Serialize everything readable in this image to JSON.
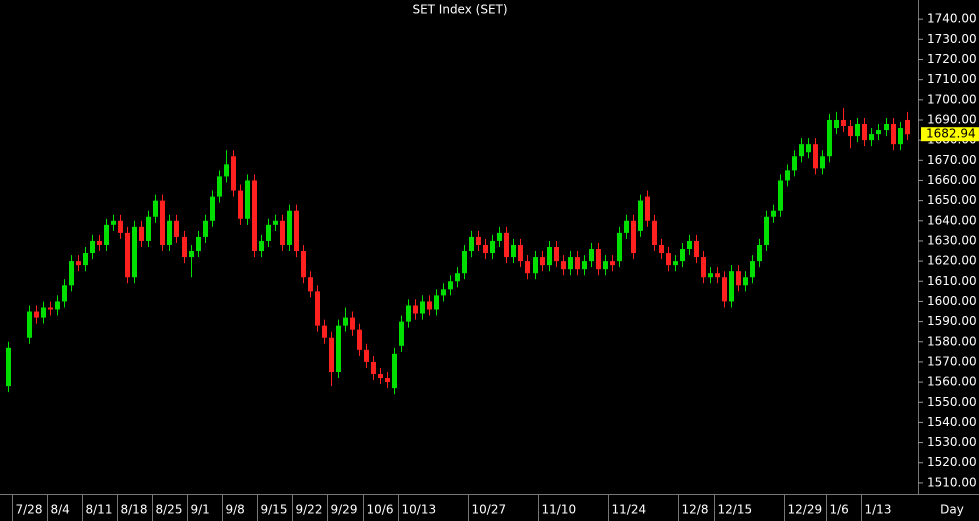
{
  "chart_data": {
    "type": "candlestick",
    "title": "SET Index (SET)",
    "x_label": "Day",
    "up_color": "#00e000",
    "down_color": "#ff2020",
    "last_color": "#ffff00",
    "ylim": [
      1504.5,
      1749.5
    ],
    "yticks": [
      {
        "value": 1510,
        "label": "1510.00"
      },
      {
        "value": 1520,
        "label": "1520.00"
      },
      {
        "value": 1530,
        "label": "1530.00"
      },
      {
        "value": 1540,
        "label": "1540.00"
      },
      {
        "value": 1550,
        "label": "1550.00"
      },
      {
        "value": 1560,
        "label": "1560.00"
      },
      {
        "value": 1570,
        "label": "1570.00"
      },
      {
        "value": 1580,
        "label": "1580.00"
      },
      {
        "value": 1590,
        "label": "1590.00"
      },
      {
        "value": 1600,
        "label": "1600.00"
      },
      {
        "value": 1610,
        "label": "1610.00"
      },
      {
        "value": 1620,
        "label": "1620.00"
      },
      {
        "value": 1630,
        "label": "1630.00"
      },
      {
        "value": 1640,
        "label": "1640.00"
      },
      {
        "value": 1650,
        "label": "1650.00"
      },
      {
        "value": 1660,
        "label": "1660.00"
      },
      {
        "value": 1670,
        "label": "1670.00"
      },
      {
        "value": 1680,
        "label": "1680.00"
      },
      {
        "value": 1690,
        "label": "1690.00"
      },
      {
        "value": 1700,
        "label": "1700.00"
      },
      {
        "value": 1710,
        "label": "1710.00"
      },
      {
        "value": 1720,
        "label": "1720.00"
      },
      {
        "value": 1730,
        "label": "1730.00"
      },
      {
        "value": 1740,
        "label": "1740.00"
      }
    ],
    "categories": [
      null,
      "7/28",
      null,
      null,
      null,
      null,
      "8/4",
      null,
      null,
      null,
      null,
      "8/11",
      null,
      null,
      null,
      null,
      "8/18",
      null,
      null,
      null,
      null,
      "8/25",
      null,
      null,
      null,
      null,
      "9/1",
      null,
      null,
      null,
      null,
      "9/8",
      null,
      null,
      null,
      null,
      "9/15",
      null,
      null,
      null,
      null,
      "9/22",
      null,
      null,
      null,
      null,
      "9/29",
      null,
      null,
      null,
      null,
      "10/6",
      null,
      null,
      null,
      null,
      "10/13",
      null,
      null,
      null,
      null,
      null,
      null,
      null,
      null,
      null,
      "10/27",
      null,
      null,
      null,
      null,
      null,
      null,
      null,
      null,
      null,
      "11/10",
      null,
      null,
      null,
      null,
      null,
      null,
      null,
      null,
      null,
      "11/24",
      null,
      null,
      null,
      null,
      null,
      null,
      null,
      null,
      null,
      "12/8",
      null,
      null,
      null,
      null,
      "12/15",
      null,
      null,
      null,
      null,
      null,
      null,
      null,
      null,
      null,
      "12/29",
      null,
      null,
      null,
      null,
      null,
      "1/6",
      null,
      null,
      null,
      null,
      "1/13",
      null,
      null,
      null,
      null,
      null,
      null
    ],
    "open": [
      1558,
      null,
      null,
      1582,
      1595,
      1592,
      1597,
      1596,
      1600,
      1608,
      1620,
      1618,
      1624,
      1630,
      1628,
      1638,
      1640,
      1634,
      1612,
      1637,
      1630,
      1642,
      1650,
      1628,
      1640,
      1632,
      1622,
      1625,
      1632,
      1640,
      1652,
      1662,
      1672,
      1655,
      1641,
      1660,
      1625,
      1630,
      1638,
      1640,
      1628,
      1645,
      1625,
      1612,
      1605,
      1588,
      1582,
      1565,
      1588,
      1592,
      1586,
      1576,
      1570,
      1564,
      1562,
      1557,
      1578,
      1590,
      1598,
      1594,
      1600,
      1596,
      1603,
      1606,
      1610,
      1614,
      1625,
      1632,
      1628,
      1624,
      1630,
      1634,
      1622,
      1628,
      1620,
      1614,
      1622,
      1618,
      1627,
      1620,
      1616,
      1622,
      1616,
      1620,
      1626,
      1616,
      1620,
      1620,
      1634,
      1640,
      1635,
      1652,
      1640,
      1628,
      1624,
      1618,
      1620,
      1626,
      1630,
      1622,
      1612,
      1614,
      1612,
      1600,
      1615,
      1608,
      1612,
      1620,
      1628,
      1642,
      1645,
      1660,
      1665,
      1672,
      1674,
      1678,
      1666,
      1672,
      1686,
      1690,
      1687,
      1682,
      1688,
      1680,
      1683,
      1685,
      1688,
      1678,
      1690
    ],
    "high": [
      1580,
      null,
      null,
      1598,
      1598,
      1600,
      1600,
      1603,
      1611,
      1623,
      1623,
      1627,
      1633,
      1633,
      1641,
      1643,
      1643,
      1637,
      1640,
      1640,
      1645,
      1653,
      1653,
      1643,
      1643,
      1635,
      1628,
      1635,
      1643,
      1655,
      1665,
      1675,
      1675,
      1658,
      1663,
      1663,
      1633,
      1641,
      1643,
      1643,
      1648,
      1648,
      1628,
      1615,
      1608,
      1591,
      1585,
      1591,
      1597,
      1595,
      1589,
      1579,
      1573,
      1567,
      1565,
      1577,
      1593,
      1601,
      1601,
      1603,
      1603,
      1606,
      1609,
      1613,
      1617,
      1628,
      1635,
      1635,
      1631,
      1633,
      1637,
      1637,
      1631,
      1631,
      1623,
      1625,
      1625,
      1630,
      1630,
      1623,
      1625,
      1625,
      1623,
      1629,
      1629,
      1623,
      1623,
      1637,
      1643,
      1643,
      1653,
      1655,
      1643,
      1631,
      1627,
      1623,
      1629,
      1633,
      1633,
      1625,
      1617,
      1617,
      1615,
      1618,
      1618,
      1615,
      1623,
      1631,
      1645,
      1648,
      1663,
      1668,
      1675,
      1681,
      1681,
      1681,
      1675,
      1693,
      1694,
      1696,
      1690,
      1691,
      1691,
      1686,
      1688,
      1691,
      1691,
      1689,
      1694
    ],
    "low": [
      1555,
      null,
      null,
      1579,
      1589,
      1589,
      1593,
      1593,
      1597,
      1605,
      1615,
      1615,
      1621,
      1625,
      1625,
      1635,
      1631,
      1609,
      1609,
      1627,
      1627,
      1639,
      1625,
      1625,
      1629,
      1619,
      1612,
      1622,
      1629,
      1637,
      1649,
      1659,
      1652,
      1638,
      1638,
      1622,
      1622,
      1627,
      1635,
      1625,
      1625,
      1622,
      1609,
      1602,
      1585,
      1579,
      1558,
      1562,
      1585,
      1583,
      1573,
      1567,
      1561,
      1559,
      1557,
      1554,
      1575,
      1587,
      1591,
      1591,
      1593,
      1593,
      1600,
      1603,
      1607,
      1611,
      1622,
      1625,
      1621,
      1621,
      1627,
      1619,
      1619,
      1617,
      1611,
      1611,
      1615,
      1615,
      1617,
      1613,
      1613,
      1613,
      1613,
      1617,
      1613,
      1613,
      1615,
      1617,
      1631,
      1621,
      1632,
      1637,
      1625,
      1621,
      1615,
      1615,
      1617,
      1623,
      1619,
      1609,
      1609,
      1609,
      1597,
      1597,
      1605,
      1605,
      1609,
      1617,
      1625,
      1639,
      1642,
      1657,
      1662,
      1669,
      1671,
      1663,
      1663,
      1669,
      1683,
      1684,
      1676,
      1679,
      1677,
      1677,
      1680,
      1682,
      1675,
      1675,
      1680
    ],
    "close": [
      1577,
      null,
      null,
      1595,
      1592,
      1597,
      1596,
      1600,
      1608,
      1620,
      1618,
      1624,
      1630,
      1628,
      1638,
      1640,
      1634,
      1612,
      1637,
      1630,
      1642,
      1650,
      1628,
      1640,
      1632,
      1622,
      1625,
      1632,
      1640,
      1652,
      1662,
      1668,
      1655,
      1641,
      1660,
      1625,
      1630,
      1638,
      1640,
      1628,
      1645,
      1625,
      1612,
      1605,
      1588,
      1582,
      1565,
      1588,
      1592,
      1586,
      1576,
      1570,
      1564,
      1562,
      1560,
      1574,
      1590,
      1598,
      1594,
      1600,
      1596,
      1603,
      1606,
      1610,
      1614,
      1625,
      1632,
      1628,
      1624,
      1630,
      1634,
      1622,
      1628,
      1620,
      1614,
      1622,
      1618,
      1627,
      1620,
      1616,
      1622,
      1616,
      1620,
      1626,
      1616,
      1620,
      1618,
      1634,
      1640,
      1624,
      1650,
      1640,
      1628,
      1624,
      1618,
      1620,
      1626,
      1630,
      1622,
      1612,
      1614,
      1612,
      1600,
      1615,
      1608,
      1612,
      1620,
      1628,
      1642,
      1645,
      1660,
      1665,
      1672,
      1678,
      1678,
      1666,
      1672,
      1690,
      1690,
      1687,
      1682,
      1688,
      1680,
      1683,
      1685,
      1688,
      1678,
      1686,
      1682.94
    ]
  }
}
